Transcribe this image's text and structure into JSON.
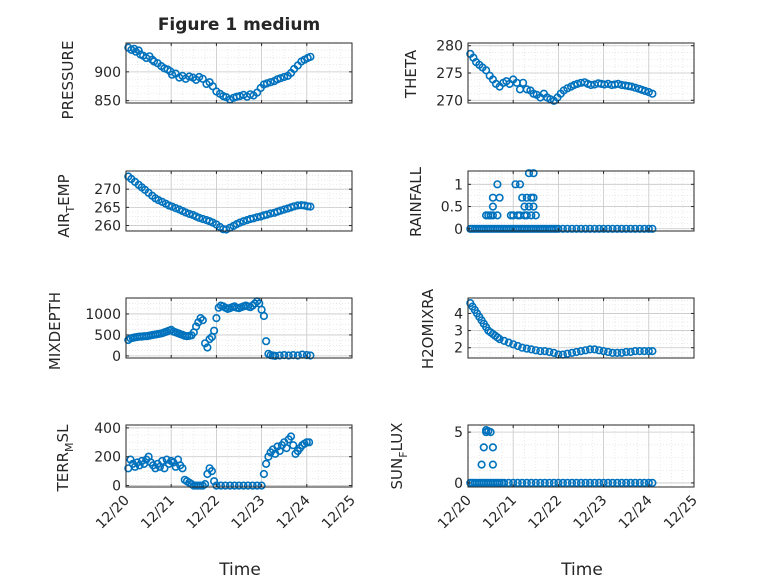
{
  "figure": {
    "title": "Figure 1 medium"
  },
  "chart_data": [
    {
      "id": "pressure",
      "type": "scatter",
      "ylabel": "PRESSURE",
      "xlim": [
        0,
        5
      ],
      "ylim": [
        846,
        950
      ],
      "yticks": [
        850,
        900
      ],
      "x": [
        0.05,
        0.12,
        0.18,
        0.22,
        0.28,
        0.32,
        0.38,
        0.45,
        0.52,
        0.58,
        0.62,
        0.7,
        0.78,
        0.85,
        0.92,
        0.98,
        1.02,
        1.1,
        1.18,
        1.25,
        1.32,
        1.4,
        1.48,
        1.55,
        1.62,
        1.7,
        1.78,
        1.85,
        1.92,
        2.0,
        2.08,
        2.15,
        2.22,
        2.3,
        2.38,
        2.45,
        2.52,
        2.6,
        2.68,
        2.75,
        2.82,
        2.9,
        2.98,
        3.05,
        3.12,
        3.2,
        3.28,
        3.35,
        3.42,
        3.5,
        3.58,
        3.65,
        3.72,
        3.8,
        3.88,
        3.95,
        4.02,
        4.08
      ],
      "y": [
        942,
        938,
        940,
        935,
        937,
        930,
        928,
        924,
        927,
        921,
        918,
        915,
        910,
        906,
        904,
        901,
        895,
        897,
        890,
        893,
        888,
        892,
        890,
        886,
        891,
        888,
        879,
        882,
        875,
        866,
        862,
        858,
        856,
        852,
        855,
        857,
        858,
        860,
        857,
        861,
        859,
        864,
        872,
        878,
        880,
        882,
        884,
        887,
        889,
        891,
        893,
        898,
        905,
        911,
        918,
        921,
        924,
        926
      ]
    },
    {
      "id": "theta",
      "type": "scatter",
      "ylabel": "THETA",
      "xlim": [
        0,
        5
      ],
      "ylim": [
        269.5,
        280.5
      ],
      "yticks": [
        270,
        275,
        280
      ],
      "x": [
        0.05,
        0.12,
        0.18,
        0.25,
        0.32,
        0.4,
        0.48,
        0.55,
        0.62,
        0.7,
        0.78,
        0.85,
        0.92,
        1.0,
        1.08,
        1.15,
        1.22,
        1.3,
        1.38,
        1.45,
        1.52,
        1.6,
        1.68,
        1.75,
        1.82,
        1.9,
        1.98,
        2.05,
        2.12,
        2.2,
        2.28,
        2.35,
        2.42,
        2.5,
        2.58,
        2.65,
        2.72,
        2.8,
        2.88,
        2.95,
        3.02,
        3.1,
        3.18,
        3.25,
        3.32,
        3.4,
        3.48,
        3.55,
        3.62,
        3.7,
        3.78,
        3.85,
        3.92,
        4.0,
        4.08
      ],
      "y": [
        278.5,
        277.8,
        277.0,
        276.5,
        276.0,
        275.5,
        274.5,
        273.8,
        273.0,
        272.5,
        273.2,
        273.5,
        273.0,
        273.8,
        273.2,
        272.0,
        273.2,
        272.0,
        271.8,
        271.2,
        271.0,
        270.5,
        271.2,
        270.5,
        270.2,
        269.9,
        270.5,
        271.2,
        271.8,
        272.2,
        272.5,
        272.8,
        273.0,
        273.2,
        273.3,
        273.0,
        272.8,
        272.9,
        273.1,
        273.0,
        272.9,
        273.0,
        272.8,
        272.9,
        273.0,
        272.8,
        272.7,
        272.6,
        272.5,
        272.3,
        272.1,
        271.9,
        271.7,
        271.5,
        271.2
      ]
    },
    {
      "id": "air_temp",
      "type": "scatter",
      "ylabel": "AIR_TEMP",
      "xlim": [
        0,
        5
      ],
      "ylim": [
        258.5,
        275
      ],
      "yticks": [
        260,
        265,
        270
      ],
      "x": [
        0.05,
        0.12,
        0.2,
        0.28,
        0.35,
        0.42,
        0.5,
        0.58,
        0.65,
        0.72,
        0.8,
        0.88,
        0.95,
        1.02,
        1.1,
        1.18,
        1.25,
        1.32,
        1.4,
        1.48,
        1.55,
        1.62,
        1.7,
        1.78,
        1.85,
        1.92,
        2.0,
        2.08,
        2.15,
        2.22,
        2.3,
        2.38,
        2.45,
        2.52,
        2.6,
        2.68,
        2.75,
        2.82,
        2.9,
        2.98,
        3.05,
        3.12,
        3.2,
        3.28,
        3.35,
        3.42,
        3.5,
        3.58,
        3.65,
        3.72,
        3.8,
        3.88,
        3.95,
        4.02,
        4.08
      ],
      "y": [
        273.5,
        272.8,
        272.0,
        271.2,
        270.5,
        269.8,
        269.0,
        268.2,
        267.5,
        267.0,
        266.5,
        266.0,
        265.5,
        265.2,
        264.8,
        264.4,
        264.0,
        263.6,
        263.2,
        262.9,
        262.5,
        262.1,
        261.8,
        261.5,
        261.2,
        260.8,
        260.3,
        259.6,
        259.0,
        258.9,
        259.4,
        259.9,
        260.4,
        260.8,
        261.2,
        261.5,
        261.8,
        262.0,
        262.3,
        262.5,
        262.8,
        263.0,
        263.3,
        263.5,
        263.8,
        264.1,
        264.4,
        264.7,
        265.0,
        265.3,
        265.5,
        265.6,
        265.5,
        265.3,
        265.2
      ]
    },
    {
      "id": "rainfall",
      "type": "scatter",
      "ylabel": "RAINFALL",
      "xlim": [
        0,
        5
      ],
      "ylim": [
        -0.05,
        1.3
      ],
      "yticks": [
        0,
        0.5,
        1
      ],
      "x": [
        0.05,
        0.1,
        0.15,
        0.2,
        0.25,
        0.3,
        0.35,
        0.4,
        0.45,
        0.5,
        0.55,
        0.6,
        0.65,
        0.7,
        0.75,
        0.8,
        0.85,
        0.9,
        0.95,
        1.0,
        1.05,
        1.1,
        1.15,
        1.2,
        1.25,
        1.3,
        1.35,
        1.4,
        1.45,
        1.5,
        1.55,
        1.6,
        1.65,
        1.7,
        1.75,
        1.8,
        1.85,
        1.9,
        1.95,
        2.0,
        2.1,
        2.2,
        2.3,
        2.4,
        2.5,
        2.6,
        2.7,
        2.8,
        2.9,
        3.0,
        3.1,
        3.2,
        3.3,
        3.4,
        3.5,
        3.6,
        3.7,
        3.8,
        3.9,
        4.0,
        4.08,
        0.4,
        0.45,
        0.5,
        0.55,
        0.55,
        0.55,
        0.65,
        0.65,
        0.7,
        0.95,
        1.0,
        1.05,
        1.1,
        1.15,
        1.15,
        1.2,
        1.25,
        1.25,
        1.3,
        1.3,
        1.35,
        1.35,
        1.4,
        1.4,
        1.45,
        1.45,
        1.45,
        1.5
      ],
      "y": [
        0,
        0,
        0,
        0,
        0,
        0,
        0,
        0,
        0,
        0,
        0,
        0,
        0,
        0,
        0,
        0,
        0,
        0,
        0,
        0,
        0,
        0,
        0,
        0,
        0,
        0,
        0,
        0,
        0,
        0,
        0,
        0,
        0,
        0,
        0,
        0,
        0,
        0,
        0,
        0,
        0,
        0,
        0,
        0,
        0,
        0,
        0,
        0,
        0,
        0,
        0,
        0,
        0,
        0,
        0,
        0,
        0,
        0,
        0,
        0,
        0,
        0.3,
        0.3,
        0.3,
        0.3,
        0.5,
        0.7,
        0.3,
        1.0,
        0.7,
        0.3,
        0.3,
        1.0,
        0.3,
        0.3,
        1.0,
        0.7,
        0.3,
        0.5,
        0.7,
        0.3,
        1.25,
        0.5,
        0.7,
        0.3,
        1.25,
        0.5,
        0.7,
        0.3
      ]
    },
    {
      "id": "mixdepth",
      "type": "scatter",
      "ylabel": "MIXDEPTH",
      "xlim": [
        0,
        5
      ],
      "ylim": [
        -50,
        1380
      ],
      "yticks": [
        0,
        500,
        1000
      ],
      "x": [
        0.05,
        0.1,
        0.15,
        0.2,
        0.25,
        0.3,
        0.35,
        0.4,
        0.45,
        0.5,
        0.55,
        0.6,
        0.65,
        0.7,
        0.75,
        0.8,
        0.85,
        0.9,
        0.95,
        1.0,
        1.05,
        1.1,
        1.15,
        1.2,
        1.25,
        1.3,
        1.35,
        1.4,
        1.45,
        1.5,
        1.55,
        1.6,
        1.65,
        1.7,
        1.75,
        1.8,
        1.85,
        1.9,
        1.95,
        2.0,
        2.05,
        2.1,
        2.15,
        2.2,
        2.25,
        2.3,
        2.35,
        2.4,
        2.45,
        2.5,
        2.55,
        2.6,
        2.65,
        2.7,
        2.75,
        2.8,
        2.85,
        2.9,
        2.95,
        3.0,
        3.05,
        3.1,
        3.15,
        3.2,
        3.25,
        3.3,
        3.4,
        3.5,
        3.6,
        3.7,
        3.8,
        3.9,
        4.0,
        4.08
      ],
      "y": [
        380,
        420,
        430,
        440,
        450,
        460,
        460,
        470,
        470,
        480,
        490,
        500,
        510,
        520,
        530,
        540,
        560,
        580,
        600,
        620,
        580,
        560,
        540,
        520,
        500,
        480,
        470,
        480,
        490,
        560,
        700,
        800,
        900,
        850,
        300,
        200,
        400,
        450,
        600,
        900,
        1150,
        1200,
        1180,
        1150,
        1120,
        1140,
        1160,
        1180,
        1150,
        1140,
        1160,
        1180,
        1200,
        1180,
        1160,
        1200,
        1250,
        1300,
        1250,
        1100,
        950,
        350,
        50,
        20,
        10,
        0,
        10,
        20,
        10,
        20,
        10,
        30,
        20,
        10
      ]
    },
    {
      "id": "h2omixra",
      "type": "scatter",
      "ylabel": "H2OMIXRA",
      "xlim": [
        0,
        5
      ],
      "ylim": [
        1.4,
        4.9
      ],
      "yticks": [
        2,
        3,
        4
      ],
      "x": [
        0.05,
        0.1,
        0.15,
        0.2,
        0.25,
        0.3,
        0.35,
        0.4,
        0.45,
        0.5,
        0.55,
        0.6,
        0.65,
        0.7,
        0.8,
        0.9,
        1.0,
        1.1,
        1.2,
        1.3,
        1.4,
        1.5,
        1.6,
        1.7,
        1.8,
        1.9,
        2.0,
        2.1,
        2.2,
        2.3,
        2.4,
        2.5,
        2.6,
        2.7,
        2.8,
        2.9,
        3.0,
        3.1,
        3.2,
        3.3,
        3.4,
        3.5,
        3.6,
        3.7,
        3.8,
        3.9,
        4.0,
        4.08
      ],
      "y": [
        4.6,
        4.4,
        4.2,
        4.0,
        3.8,
        3.6,
        3.4,
        3.2,
        3.0,
        2.9,
        2.8,
        2.7,
        2.6,
        2.5,
        2.4,
        2.3,
        2.2,
        2.1,
        2.0,
        1.95,
        1.9,
        1.85,
        1.8,
        1.8,
        1.75,
        1.7,
        1.6,
        1.6,
        1.65,
        1.7,
        1.75,
        1.8,
        1.85,
        1.9,
        1.9,
        1.85,
        1.8,
        1.75,
        1.7,
        1.7,
        1.7,
        1.75,
        1.75,
        1.8,
        1.8,
        1.8,
        1.8,
        1.8
      ]
    },
    {
      "id": "terr_msl",
      "type": "scatter",
      "ylabel": "TERR_MSL",
      "xlim": [
        0,
        5
      ],
      "ylim": [
        -10,
        420
      ],
      "yticks": [
        0,
        200,
        400
      ],
      "x": [
        0.05,
        0.1,
        0.15,
        0.2,
        0.25,
        0.3,
        0.35,
        0.4,
        0.45,
        0.5,
        0.55,
        0.6,
        0.65,
        0.7,
        0.75,
        0.8,
        0.85,
        0.9,
        0.95,
        1.0,
        1.05,
        1.1,
        1.15,
        1.2,
        1.25,
        1.3,
        1.35,
        1.4,
        1.45,
        1.5,
        1.55,
        1.6,
        1.65,
        1.7,
        1.75,
        1.8,
        1.85,
        1.9,
        1.95,
        2.0,
        2.1,
        2.2,
        2.3,
        2.4,
        2.5,
        2.6,
        2.7,
        2.8,
        2.9,
        3.0,
        3.05,
        3.1,
        3.15,
        3.2,
        3.25,
        3.3,
        3.35,
        3.4,
        3.45,
        3.5,
        3.55,
        3.6,
        3.65,
        3.7,
        3.75,
        3.8,
        3.85,
        3.9,
        3.95,
        4.0,
        4.05
      ],
      "y": [
        120,
        180,
        150,
        130,
        160,
        140,
        170,
        150,
        180,
        200,
        160,
        140,
        120,
        150,
        130,
        170,
        120,
        180,
        150,
        170,
        160,
        130,
        180,
        140,
        120,
        40,
        30,
        20,
        10,
        0,
        0,
        0,
        0,
        0,
        10,
        80,
        120,
        100,
        30,
        0,
        0,
        0,
        0,
        0,
        0,
        0,
        0,
        0,
        0,
        0,
        80,
        150,
        200,
        230,
        250,
        220,
        270,
        240,
        280,
        300,
        260,
        320,
        340,
        280,
        220,
        240,
        260,
        280,
        290,
        300,
        300
      ]
    },
    {
      "id": "sun_flux",
      "type": "scatter",
      "ylabel": "SUN_FLUX",
      "xlim": [
        0,
        5
      ],
      "ylim": [
        -0.4,
        5.7
      ],
      "yticks": [
        0,
        5
      ],
      "x": [
        0.05,
        0.1,
        0.15,
        0.2,
        0.25,
        0.3,
        0.35,
        0.4,
        0.45,
        0.5,
        0.55,
        0.6,
        0.65,
        0.7,
        0.75,
        0.8,
        0.9,
        1.0,
        1.1,
        1.2,
        1.3,
        1.4,
        1.5,
        1.6,
        1.7,
        1.8,
        1.9,
        2.0,
        2.1,
        2.2,
        2.3,
        2.4,
        2.5,
        2.6,
        2.7,
        2.8,
        2.9,
        3.0,
        3.1,
        3.2,
        3.3,
        3.4,
        3.5,
        3.6,
        3.7,
        3.8,
        3.9,
        4.0,
        4.08,
        0.3,
        0.35,
        0.4,
        0.4,
        0.45,
        0.5,
        0.55,
        0.55
      ],
      "y": [
        0,
        0,
        0,
        0,
        0,
        0,
        0,
        0,
        0,
        0,
        0,
        0,
        0,
        0,
        0,
        0,
        0,
        0,
        0,
        0,
        0,
        0,
        0,
        0,
        0,
        0,
        0,
        0,
        0,
        0,
        0,
        0,
        0,
        0,
        0,
        0,
        0,
        0,
        0,
        0,
        0,
        0,
        0,
        0,
        0,
        0,
        0,
        0,
        0,
        1.8,
        3.5,
        5.2,
        5.0,
        5.1,
        5.0,
        3.5,
        1.8
      ]
    }
  ],
  "xaxis": {
    "label": "Time",
    "ticks": [
      0,
      1,
      2,
      3,
      4,
      5
    ],
    "ticklabels": [
      "12/20",
      "12/21",
      "12/22",
      "12/23",
      "12/24",
      "12/25"
    ]
  },
  "ylabels": {
    "pressure": "PRESSURE",
    "theta": "THETA",
    "air_temp_main": "AIR",
    "air_temp_sub": "T",
    "air_temp_tail": "EMP",
    "rainfall": "RAINFALL",
    "mixdepth": "MIXDEPTH",
    "h2omixra": "H2OMIXRA",
    "terr_main": "TERR",
    "terr_sub": "M",
    "terr_tail": "SL",
    "sun_main": "SUN",
    "sun_sub": "F",
    "sun_tail": "LUX"
  },
  "colors": {
    "marker": "#0072BD",
    "axis": "#262626",
    "grid": "#c8c8c8",
    "gridminor": "#e4e4e4"
  }
}
